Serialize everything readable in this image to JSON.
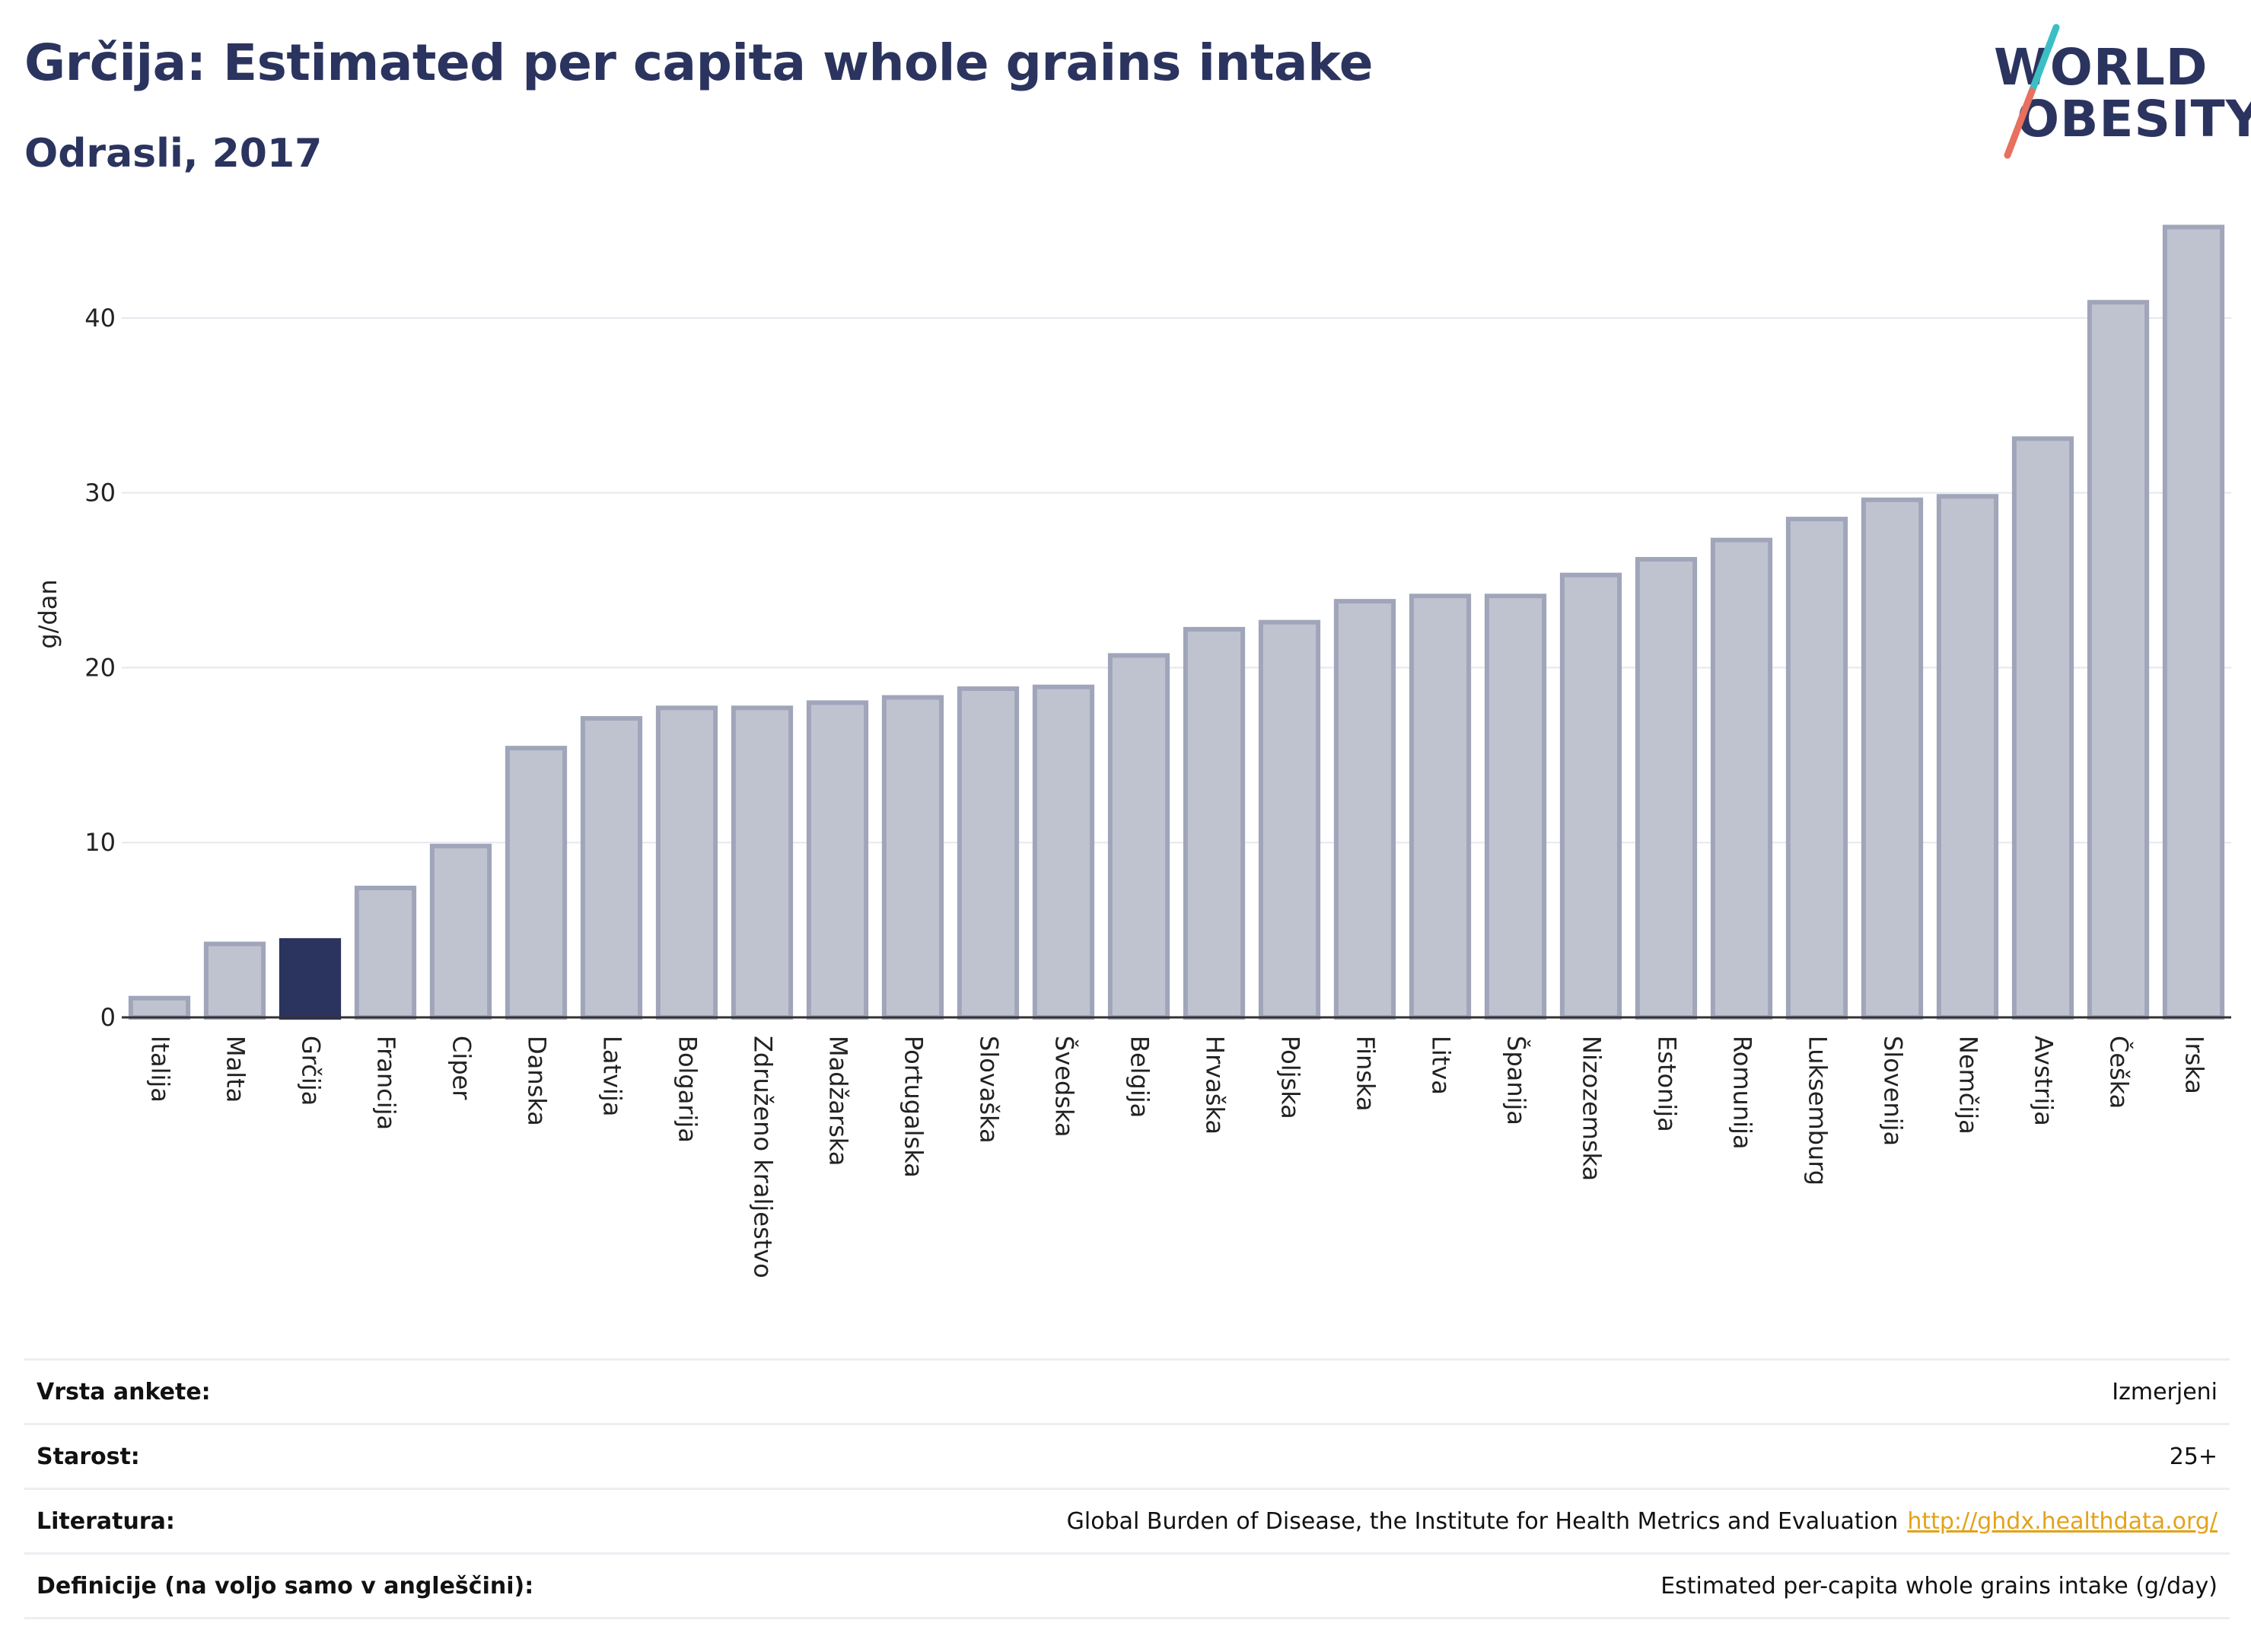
{
  "header": {
    "title": "Grčija: Estimated per capita whole grains intake",
    "subtitle": "Odrasli, 2017"
  },
  "logo": {
    "line1": "WORLD",
    "line2": "OBESITY"
  },
  "colors": {
    "highlight": "#2b345f",
    "bar": "#bfc3d0",
    "bar_border": "#a0a5ba",
    "accent_teal": "#3bbfc4",
    "accent_red": "#e7705f"
  },
  "chart_data": {
    "type": "bar",
    "ylabel": "g/dan",
    "xlabel": "",
    "ylim": [
      0,
      46
    ],
    "yticks": [
      0,
      10,
      20,
      30,
      40
    ],
    "grid": true,
    "highlight": "Grčija",
    "categories": [
      "Italija",
      "Malta",
      "Grčija",
      "Francija",
      "Ciper",
      "Danska",
      "Latvija",
      "Bolgarija",
      "Združeno kraljestvo",
      "Madžarska",
      "Portugalska",
      "Slovaška",
      "Švedska",
      "Belgija",
      "Hrvaška",
      "Poljska",
      "Finska",
      "Litva",
      "Španija",
      "Nizozemska",
      "Estonija",
      "Romunija",
      "Luksemburg",
      "Slovenija",
      "Nemčija",
      "Avstrija",
      "Češka",
      "Irska"
    ],
    "values": [
      1.1,
      4.2,
      4.4,
      7.4,
      9.8,
      15.4,
      17.1,
      17.7,
      17.7,
      18.0,
      18.3,
      18.8,
      18.9,
      20.7,
      22.2,
      22.6,
      23.8,
      24.1,
      24.1,
      25.3,
      26.2,
      27.3,
      28.5,
      29.6,
      29.8,
      33.1,
      40.9,
      45.2
    ]
  },
  "info": {
    "rows": [
      {
        "label": "Vrsta ankete:",
        "value": "Izmerjeni",
        "link": ""
      },
      {
        "label": "Starost:",
        "value": "25+",
        "link": ""
      },
      {
        "label": "Literatura:",
        "value": "Global Burden of Disease, the Institute for Health Metrics and Evaluation",
        "link": "http://ghdx.healthdata.org/"
      },
      {
        "label": "Definicije (na voljo samo v angleščini):",
        "value": "Estimated per-capita whole grains intake (g/day)",
        "link": ""
      }
    ]
  }
}
